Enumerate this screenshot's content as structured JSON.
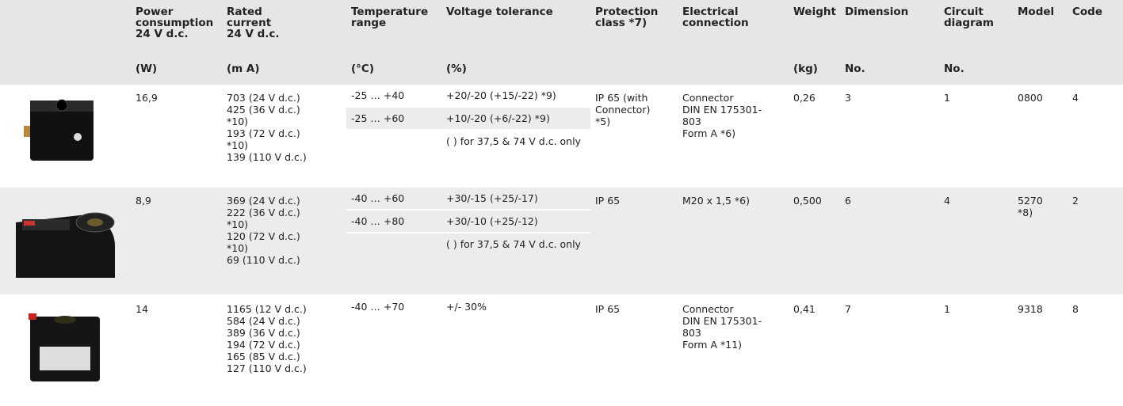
{
  "header": {
    "columns": [
      {
        "label": [
          "Power",
          "consumption",
          "24 V d.c."
        ],
        "unit": "(W)"
      },
      {
        "label": [
          "Rated",
          "current",
          "24 V d.c."
        ],
        "unit": "(m A)"
      },
      {
        "label": [
          "Temperature",
          "range"
        ],
        "unit": "(°C)"
      },
      {
        "label": [
          "Voltage tolerance"
        ],
        "unit": "(%)"
      },
      {
        "label": [
          "Protection",
          "class *7)"
        ]
      },
      {
        "label": [
          "Electrical",
          "connection"
        ]
      },
      {
        "label": [
          "Weight"
        ],
        "unit": "(kg)"
      },
      {
        "label": [
          "Dimension"
        ],
        "unit": "No."
      },
      {
        "label": [
          "Circuit",
          "diagram"
        ],
        "unit": "No."
      },
      {
        "label": [
          "Model"
        ]
      },
      {
        "label": [
          "Code"
        ]
      }
    ]
  },
  "table": {
    "rows": [
      {
        "power": "16,9",
        "current": [
          "703 (24 V d.c.)",
          "425 (36 V d.c.)",
          "*10)",
          "193 (72 V d.c.)",
          "*10)",
          "139 (110 V d.c.)"
        ],
        "ranges": [
          {
            "temperature": "-25 … +40",
            "voltage": "+20/-20 (+15/-22) *9)"
          },
          {
            "temperature": "-25 … +60",
            "voltage": "+10/-20 (+6/-22) *9)"
          }
        ],
        "note": "( ) for 37,5 & 74 V d.c. only",
        "protection": [
          "IP 65 (with",
          "Connector)",
          "*5)"
        ],
        "connection": [
          "Connector",
          "DIN EN 175301-",
          "803",
          "Form A *6)"
        ],
        "weight": "0,26",
        "dimension": "3",
        "circuit": "1",
        "model": [
          "0800"
        ],
        "code": "4"
      },
      {
        "power": "8,9",
        "current": [
          "369 (24 V d.c.)",
          "222 (36 V d.c.)",
          "*10)",
          "120 (72 V d.c.)",
          "*10)",
          "69 (110 V d.c.)"
        ],
        "ranges": [
          {
            "temperature": "-40 … +60",
            "voltage": "+30/-15 (+25/-17)"
          },
          {
            "temperature": "-40 … +80",
            "voltage": "+30/-10 (+25/-12)"
          }
        ],
        "note": "( ) for 37,5 &  74 V d.c. only",
        "protection": [
          "IP 65"
        ],
        "connection": [
          "M20 x 1,5 *6)"
        ],
        "weight": "0,500",
        "dimension": "6",
        "circuit": "4",
        "model": [
          "5270",
          "*8)"
        ],
        "code": "2"
      },
      {
        "power": "14",
        "current": [
          "1165 (12 V d.c.)",
          "584 (24 V d.c.)",
          "389 (36 V d.c.)",
          "194 (72 V d.c.)",
          "165 (85 V d.c.)",
          "127 (110 V d.c.)"
        ],
        "ranges": [
          {
            "temperature": "-40 … +70",
            "voltage": "+/- 30%"
          }
        ],
        "protection": [
          "IP 65"
        ],
        "connection": [
          "Connector",
          "DIN EN 175301-",
          "803",
          "Form A *11)"
        ],
        "weight": "0,41",
        "dimension": "7",
        "circuit": "1",
        "model": [
          "9318"
        ],
        "code": "8"
      }
    ]
  }
}
